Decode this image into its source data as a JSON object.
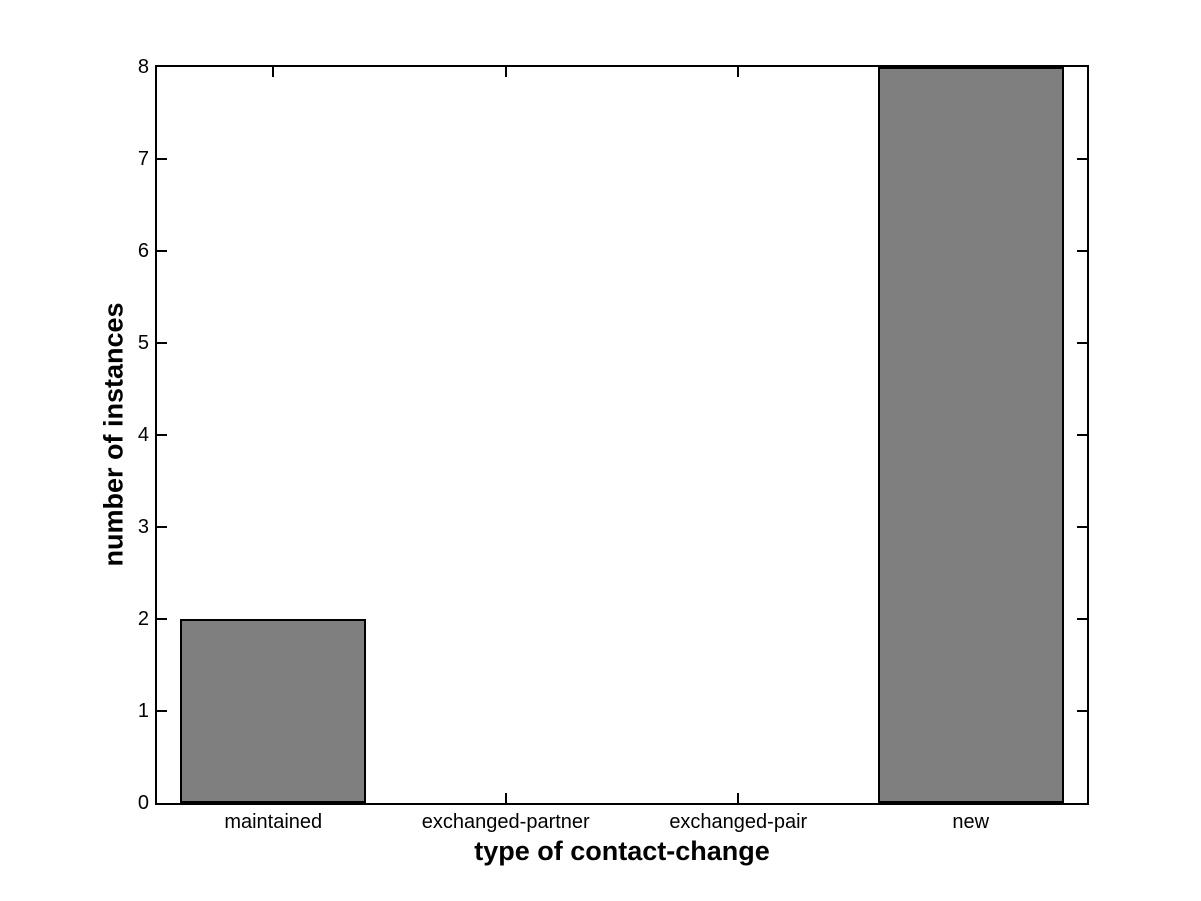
{
  "figure": {
    "background": "#ffffff"
  },
  "chart_data": {
    "type": "bar",
    "categories": [
      "maintained",
      "exchanged-partner",
      "exchanged-pair",
      "new"
    ],
    "values": [
      2,
      0,
      0,
      8
    ],
    "title": "",
    "xlabel": "type of contact-change",
    "ylabel": "number of instances",
    "ylim": [
      0,
      8
    ],
    "yticks": [
      0,
      1,
      2,
      3,
      4,
      5,
      6,
      7,
      8
    ],
    "bar_width_fraction": 0.8,
    "bar_color": "#7f7f7f",
    "bar_edge_color": "#000000",
    "axis_color": "#000000",
    "grid": false,
    "legend": null
  }
}
